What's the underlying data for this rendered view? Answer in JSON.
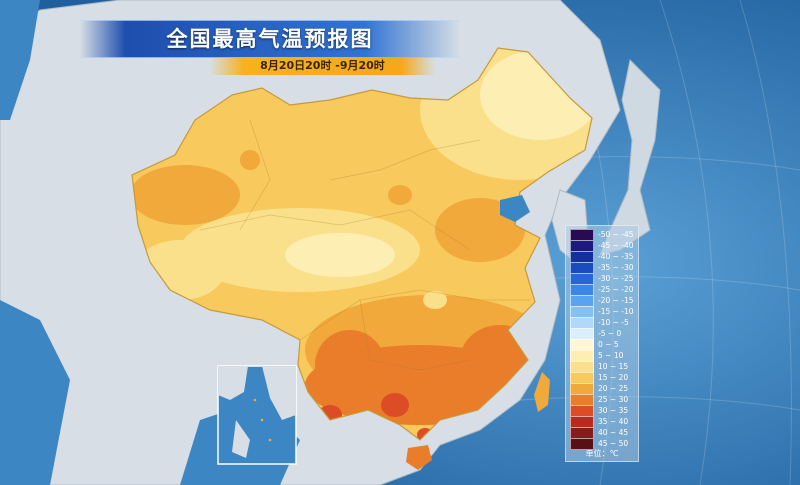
{
  "header": {
    "title": "全国最高气温预报图",
    "date_range": "8月20日20时 -9月20时"
  },
  "legend": {
    "unit": "单位：℃",
    "items": [
      {
        "label": "-50 ~ -45",
        "color": "#2a0a55"
      },
      {
        "label": "-45 ~ -40",
        "color": "#1c1a7c"
      },
      {
        "label": "-40 ~ -35",
        "color": "#12309e"
      },
      {
        "label": "-35 ~ -30",
        "color": "#1a4bc0"
      },
      {
        "label": "-30 ~ -25",
        "color": "#2566d8"
      },
      {
        "label": "-25 ~ -20",
        "color": "#3b86e6"
      },
      {
        "label": "-20 ~ -15",
        "color": "#5aa3ee"
      },
      {
        "label": "-15 ~ -10",
        "color": "#85c0f3"
      },
      {
        "label": "-10 ~ -5",
        "color": "#b1d8f8"
      },
      {
        "label": "-5 ~ 0",
        "color": "#daeefc"
      },
      {
        "label": "0 ~ 5",
        "color": "#fdf7d5"
      },
      {
        "label": "5 ~ 10",
        "color": "#fdeeb3"
      },
      {
        "label": "10 ~ 15",
        "color": "#fbe08c"
      },
      {
        "label": "15 ~ 20",
        "color": "#f8c95c"
      },
      {
        "label": "20 ~ 25",
        "color": "#f0a93a"
      },
      {
        "label": "25 ~ 30",
        "color": "#ea7d2a"
      },
      {
        "label": "30 ~ 35",
        "color": "#dc4d25"
      },
      {
        "label": "35 ~ 40",
        "color": "#b82a1f"
      },
      {
        "label": "40 ~ 45",
        "color": "#861a1e"
      },
      {
        "label": "45 ~ 50",
        "color": "#580f16"
      }
    ]
  },
  "colors": {
    "ocean": "#2f78b8",
    "land_outside": "#d7dee5",
    "accent": "#f7b21c"
  }
}
